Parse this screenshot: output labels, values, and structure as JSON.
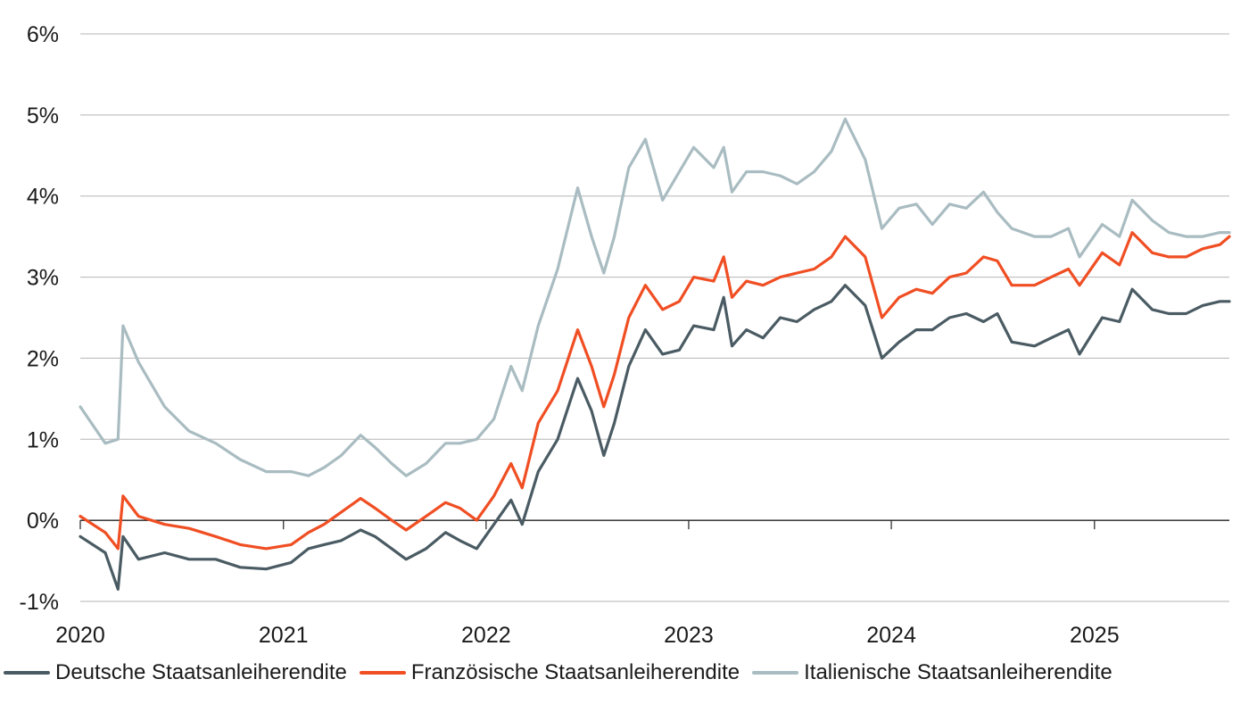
{
  "chart_data": {
    "type": "line",
    "title": "",
    "xlabel": "",
    "ylabel": "",
    "ylim": [
      -1,
      6
    ],
    "xlim": [
      "2020-01-01",
      "2025-09-01"
    ],
    "y_ticks": [
      "-1%",
      "0%",
      "1%",
      "2%",
      "3%",
      "4%",
      "5%",
      "6%"
    ],
    "x_ticks": [
      "2020",
      "2021",
      "2022",
      "2023",
      "2024",
      "2025"
    ],
    "grid": "horizontal",
    "legend_position": "bottom",
    "series": [
      {
        "name": "Deutsche Staatsanleiherendite",
        "color": "#4a5b63",
        "points": [
          [
            "2020-01-01",
            -0.2
          ],
          [
            "2020-02-15",
            -0.4
          ],
          [
            "2020-03-09",
            -0.85
          ],
          [
            "2020-03-18",
            -0.2
          ],
          [
            "2020-04-15",
            -0.48
          ],
          [
            "2020-06-01",
            -0.4
          ],
          [
            "2020-07-15",
            -0.48
          ],
          [
            "2020-09-01",
            -0.48
          ],
          [
            "2020-10-15",
            -0.58
          ],
          [
            "2020-12-01",
            -0.6
          ],
          [
            "2021-01-15",
            -0.52
          ],
          [
            "2021-02-15",
            -0.35
          ],
          [
            "2021-03-15",
            -0.3
          ],
          [
            "2021-04-15",
            -0.25
          ],
          [
            "2021-05-20",
            -0.12
          ],
          [
            "2021-06-15",
            -0.2
          ],
          [
            "2021-07-15",
            -0.35
          ],
          [
            "2021-08-10",
            -0.48
          ],
          [
            "2021-09-15",
            -0.35
          ],
          [
            "2021-10-20",
            -0.15
          ],
          [
            "2021-11-15",
            -0.25
          ],
          [
            "2021-12-15",
            -0.35
          ],
          [
            "2022-01-15",
            -0.05
          ],
          [
            "2022-02-15",
            0.25
          ],
          [
            "2022-03-07",
            -0.05
          ],
          [
            "2022-04-05",
            0.6
          ],
          [
            "2022-05-10",
            1.0
          ],
          [
            "2022-06-15",
            1.75
          ],
          [
            "2022-07-10",
            1.35
          ],
          [
            "2022-08-01",
            0.8
          ],
          [
            "2022-08-20",
            1.2
          ],
          [
            "2022-09-15",
            1.9
          ],
          [
            "2022-10-15",
            2.35
          ],
          [
            "2022-11-15",
            2.05
          ],
          [
            "2022-12-15",
            2.1
          ],
          [
            "2023-01-10",
            2.4
          ],
          [
            "2023-02-15",
            2.35
          ],
          [
            "2023-03-05",
            2.75
          ],
          [
            "2023-03-20",
            2.15
          ],
          [
            "2023-04-15",
            2.35
          ],
          [
            "2023-05-15",
            2.25
          ],
          [
            "2023-06-15",
            2.5
          ],
          [
            "2023-07-15",
            2.45
          ],
          [
            "2023-08-15",
            2.6
          ],
          [
            "2023-09-15",
            2.7
          ],
          [
            "2023-10-10",
            2.9
          ],
          [
            "2023-11-15",
            2.65
          ],
          [
            "2023-12-15",
            2.0
          ],
          [
            "2024-01-15",
            2.2
          ],
          [
            "2024-02-15",
            2.35
          ],
          [
            "2024-03-15",
            2.35
          ],
          [
            "2024-04-15",
            2.5
          ],
          [
            "2024-05-15",
            2.55
          ],
          [
            "2024-06-15",
            2.45
          ],
          [
            "2024-07-10",
            2.55
          ],
          [
            "2024-08-05",
            2.2
          ],
          [
            "2024-09-15",
            2.15
          ],
          [
            "2024-10-15",
            2.25
          ],
          [
            "2024-11-15",
            2.35
          ],
          [
            "2024-12-05",
            2.05
          ],
          [
            "2025-01-15",
            2.5
          ],
          [
            "2025-02-15",
            2.45
          ],
          [
            "2025-03-10",
            2.85
          ],
          [
            "2025-04-15",
            2.6
          ],
          [
            "2025-05-15",
            2.55
          ],
          [
            "2025-06-15",
            2.55
          ],
          [
            "2025-07-15",
            2.65
          ],
          [
            "2025-08-15",
            2.7
          ],
          [
            "2025-09-01",
            2.7
          ]
        ]
      },
      {
        "name": "Französische Staatsanleiherendite",
        "color": "#f04e23",
        "points": [
          [
            "2020-01-01",
            0.05
          ],
          [
            "2020-02-15",
            -0.15
          ],
          [
            "2020-03-09",
            -0.35
          ],
          [
            "2020-03-18",
            0.3
          ],
          [
            "2020-04-15",
            0.05
          ],
          [
            "2020-06-01",
            -0.05
          ],
          [
            "2020-07-15",
            -0.1
          ],
          [
            "2020-09-01",
            -0.2
          ],
          [
            "2020-10-15",
            -0.3
          ],
          [
            "2020-12-01",
            -0.35
          ],
          [
            "2021-01-15",
            -0.3
          ],
          [
            "2021-02-15",
            -0.15
          ],
          [
            "2021-03-15",
            -0.05
          ],
          [
            "2021-04-15",
            0.1
          ],
          [
            "2021-05-20",
            0.27
          ],
          [
            "2021-06-15",
            0.15
          ],
          [
            "2021-07-15",
            0.0
          ],
          [
            "2021-08-10",
            -0.12
          ],
          [
            "2021-09-15",
            0.05
          ],
          [
            "2021-10-20",
            0.22
          ],
          [
            "2021-11-15",
            0.15
          ],
          [
            "2021-12-15",
            0.0
          ],
          [
            "2022-01-15",
            0.3
          ],
          [
            "2022-02-15",
            0.7
          ],
          [
            "2022-03-07",
            0.4
          ],
          [
            "2022-04-05",
            1.2
          ],
          [
            "2022-05-10",
            1.6
          ],
          [
            "2022-06-15",
            2.35
          ],
          [
            "2022-07-10",
            1.9
          ],
          [
            "2022-08-01",
            1.4
          ],
          [
            "2022-08-20",
            1.8
          ],
          [
            "2022-09-15",
            2.5
          ],
          [
            "2022-10-15",
            2.9
          ],
          [
            "2022-11-15",
            2.6
          ],
          [
            "2022-12-15",
            2.7
          ],
          [
            "2023-01-10",
            3.0
          ],
          [
            "2023-02-15",
            2.95
          ],
          [
            "2023-03-05",
            3.25
          ],
          [
            "2023-03-20",
            2.75
          ],
          [
            "2023-04-15",
            2.95
          ],
          [
            "2023-05-15",
            2.9
          ],
          [
            "2023-06-15",
            3.0
          ],
          [
            "2023-07-15",
            3.05
          ],
          [
            "2023-08-15",
            3.1
          ],
          [
            "2023-09-15",
            3.25
          ],
          [
            "2023-10-10",
            3.5
          ],
          [
            "2023-11-15",
            3.25
          ],
          [
            "2023-12-15",
            2.5
          ],
          [
            "2024-01-15",
            2.75
          ],
          [
            "2024-02-15",
            2.85
          ],
          [
            "2024-03-15",
            2.8
          ],
          [
            "2024-04-15",
            3.0
          ],
          [
            "2024-05-15",
            3.05
          ],
          [
            "2024-06-15",
            3.25
          ],
          [
            "2024-07-10",
            3.2
          ],
          [
            "2024-08-05",
            2.9
          ],
          [
            "2024-09-15",
            2.9
          ],
          [
            "2024-10-15",
            3.0
          ],
          [
            "2024-11-15",
            3.1
          ],
          [
            "2024-12-05",
            2.9
          ],
          [
            "2025-01-15",
            3.3
          ],
          [
            "2025-02-15",
            3.15
          ],
          [
            "2025-03-10",
            3.55
          ],
          [
            "2025-04-15",
            3.3
          ],
          [
            "2025-05-15",
            3.25
          ],
          [
            "2025-06-15",
            3.25
          ],
          [
            "2025-07-15",
            3.35
          ],
          [
            "2025-08-15",
            3.4
          ],
          [
            "2025-09-01",
            3.5
          ]
        ]
      },
      {
        "name": "Italienische Staatsanleiherendite",
        "color": "#a9bcc1",
        "points": [
          [
            "2020-01-01",
            1.4
          ],
          [
            "2020-02-15",
            0.95
          ],
          [
            "2020-03-09",
            1.0
          ],
          [
            "2020-03-18",
            2.4
          ],
          [
            "2020-04-15",
            1.95
          ],
          [
            "2020-06-01",
            1.4
          ],
          [
            "2020-07-15",
            1.1
          ],
          [
            "2020-09-01",
            0.95
          ],
          [
            "2020-10-15",
            0.75
          ],
          [
            "2020-12-01",
            0.6
          ],
          [
            "2021-01-15",
            0.6
          ],
          [
            "2021-02-15",
            0.55
          ],
          [
            "2021-03-15",
            0.65
          ],
          [
            "2021-04-15",
            0.8
          ],
          [
            "2021-05-20",
            1.05
          ],
          [
            "2021-06-15",
            0.9
          ],
          [
            "2021-07-15",
            0.7
          ],
          [
            "2021-08-10",
            0.55
          ],
          [
            "2021-09-15",
            0.7
          ],
          [
            "2021-10-20",
            0.95
          ],
          [
            "2021-11-15",
            0.95
          ],
          [
            "2021-12-15",
            1.0
          ],
          [
            "2022-01-15",
            1.25
          ],
          [
            "2022-02-15",
            1.9
          ],
          [
            "2022-03-07",
            1.6
          ],
          [
            "2022-04-05",
            2.4
          ],
          [
            "2022-05-10",
            3.1
          ],
          [
            "2022-06-15",
            4.1
          ],
          [
            "2022-07-10",
            3.5
          ],
          [
            "2022-08-01",
            3.05
          ],
          [
            "2022-08-20",
            3.5
          ],
          [
            "2022-09-15",
            4.35
          ],
          [
            "2022-10-15",
            4.7
          ],
          [
            "2022-11-15",
            3.95
          ],
          [
            "2022-12-15",
            4.3
          ],
          [
            "2023-01-10",
            4.6
          ],
          [
            "2023-02-15",
            4.35
          ],
          [
            "2023-03-05",
            4.6
          ],
          [
            "2023-03-20",
            4.05
          ],
          [
            "2023-04-15",
            4.3
          ],
          [
            "2023-05-15",
            4.3
          ],
          [
            "2023-06-15",
            4.25
          ],
          [
            "2023-07-15",
            4.15
          ],
          [
            "2023-08-15",
            4.3
          ],
          [
            "2023-09-15",
            4.55
          ],
          [
            "2023-10-10",
            4.95
          ],
          [
            "2023-11-15",
            4.45
          ],
          [
            "2023-12-15",
            3.6
          ],
          [
            "2024-01-15",
            3.85
          ],
          [
            "2024-02-15",
            3.9
          ],
          [
            "2024-03-15",
            3.65
          ],
          [
            "2024-04-15",
            3.9
          ],
          [
            "2024-05-15",
            3.85
          ],
          [
            "2024-06-15",
            4.05
          ],
          [
            "2024-07-10",
            3.8
          ],
          [
            "2024-08-05",
            3.6
          ],
          [
            "2024-09-15",
            3.5
          ],
          [
            "2024-10-15",
            3.5
          ],
          [
            "2024-11-15",
            3.6
          ],
          [
            "2024-12-05",
            3.25
          ],
          [
            "2025-01-15",
            3.65
          ],
          [
            "2025-02-15",
            3.5
          ],
          [
            "2025-03-10",
            3.95
          ],
          [
            "2025-04-15",
            3.7
          ],
          [
            "2025-05-15",
            3.55
          ],
          [
            "2025-06-15",
            3.5
          ],
          [
            "2025-07-15",
            3.5
          ],
          [
            "2025-08-15",
            3.55
          ],
          [
            "2025-09-01",
            3.55
          ]
        ]
      }
    ]
  }
}
